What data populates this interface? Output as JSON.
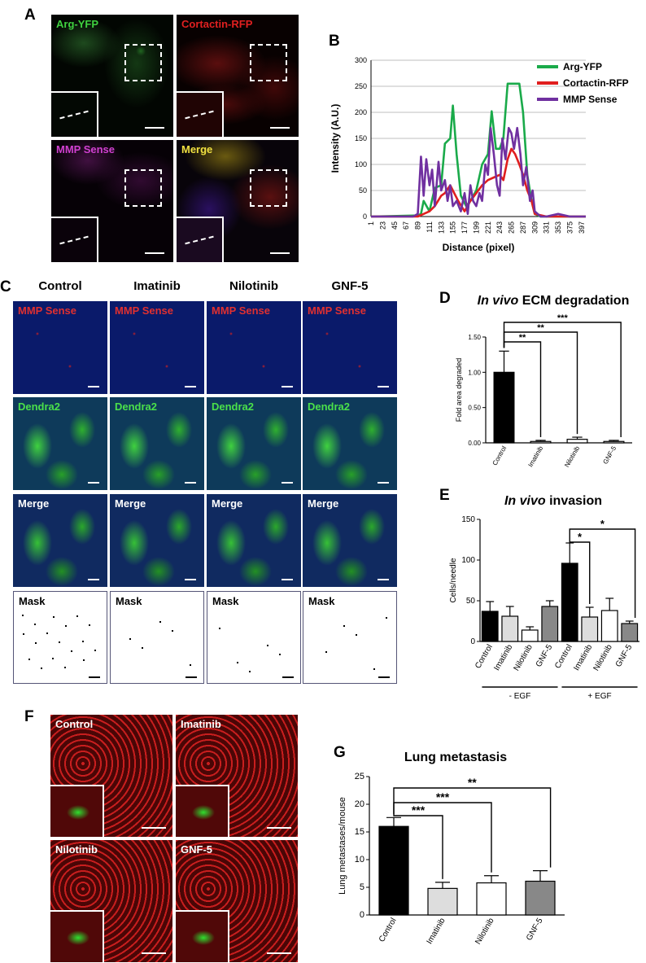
{
  "panel_labels": {
    "A": "A",
    "B": "B",
    "C": "C",
    "D": "D",
    "E": "E",
    "F": "F",
    "G": "G"
  },
  "panel_a": {
    "tiles": [
      {
        "label": "Arg-YFP",
        "color": "#3fd13f"
      },
      {
        "label": "Cortactin-RFP",
        "color": "#e02020"
      },
      {
        "label": "MMP Sense",
        "color": "#d040d0"
      },
      {
        "label": "Merge",
        "color": "#f0e040"
      }
    ]
  },
  "panel_c": {
    "columns": [
      "Control",
      "Imatinib",
      "Nilotinib",
      "GNF-5"
    ],
    "rows": [
      {
        "label": "MMP Sense",
        "color": "#e02020"
      },
      {
        "label": "Dendra2",
        "color": "#3fd13f"
      },
      {
        "label": "Merge",
        "color": "#ffffff"
      },
      {
        "label": "Mask",
        "color": "#000000"
      }
    ]
  },
  "panel_f": {
    "tiles": [
      "Control",
      "Imatinib",
      "Nilotinib",
      "GNF-5"
    ]
  },
  "chart_data": [
    {
      "id": "B",
      "type": "line",
      "ylabel": "Intensity (A.U.)",
      "xlabel": "Distance (pixel)",
      "ylim": [
        0,
        300
      ],
      "yticks": [
        "0",
        "50",
        "100",
        "150",
        "200",
        "250",
        "300"
      ],
      "xticks": [
        "1",
        "23",
        "45",
        "67",
        "89",
        "111",
        "133",
        "155",
        "177",
        "199",
        "221",
        "243",
        "265",
        "287",
        "309",
        "331",
        "353",
        "375",
        "397"
      ],
      "grid": true,
      "legend_position": "top-right",
      "series": [
        {
          "name": "Arg-YFP",
          "color": "#1aaa4a",
          "x": [
            1,
            89,
            95,
            100,
            111,
            121,
            133,
            140,
            150,
            155,
            162,
            170,
            180,
            188,
            199,
            210,
            221,
            228,
            236,
            243,
            250,
            258,
            265,
            272,
            280,
            287,
            295,
            303,
            309,
            320,
            331,
            353,
            375,
            397,
            405
          ],
          "y": [
            0,
            2,
            5,
            30,
            10,
            55,
            60,
            140,
            150,
            213,
            120,
            40,
            20,
            30,
            50,
            100,
            120,
            202,
            130,
            130,
            150,
            255,
            255,
            255,
            255,
            200,
            80,
            30,
            5,
            0,
            0,
            0,
            0,
            0,
            0
          ]
        },
        {
          "name": "Cortactin-RFP",
          "color": "#e01e1e",
          "x": [
            1,
            89,
            100,
            111,
            121,
            133,
            140,
            150,
            155,
            165,
            177,
            188,
            199,
            210,
            221,
            232,
            243,
            250,
            258,
            265,
            272,
            280,
            287,
            295,
            303,
            309,
            331,
            397,
            405
          ],
          "y": [
            0,
            0,
            5,
            10,
            20,
            40,
            45,
            60,
            50,
            30,
            10,
            30,
            45,
            60,
            70,
            75,
            80,
            70,
            110,
            130,
            120,
            100,
            80,
            50,
            30,
            5,
            0,
            0,
            0
          ]
        },
        {
          "name": "MMP Sense",
          "color": "#7030a0",
          "x": [
            1,
            80,
            89,
            95,
            100,
            105,
            111,
            116,
            121,
            128,
            133,
            140,
            145,
            150,
            155,
            162,
            170,
            177,
            183,
            188,
            193,
            199,
            205,
            210,
            216,
            221,
            226,
            232,
            238,
            243,
            248,
            254,
            260,
            265,
            270,
            276,
            282,
            287,
            293,
            300,
            305,
            309,
            320,
            331,
            353,
            375,
            397,
            405
          ],
          "y": [
            0,
            0,
            5,
            115,
            40,
            110,
            60,
            90,
            20,
            105,
            50,
            70,
            30,
            60,
            20,
            30,
            10,
            45,
            5,
            60,
            30,
            20,
            45,
            30,
            100,
            80,
            170,
            120,
            60,
            40,
            150,
            110,
            170,
            160,
            130,
            170,
            120,
            60,
            95,
            30,
            50,
            10,
            0,
            0,
            5,
            0,
            0,
            0
          ]
        }
      ]
    },
    {
      "id": "D",
      "type": "bar",
      "title_italic": "In vivo",
      "title_rest": "ECM degradation",
      "ylabel": "Fold area degraded",
      "ylim": [
        0,
        1.5
      ],
      "yticks": [
        "0.00",
        "0.50",
        "1.00",
        "1.50"
      ],
      "categories": [
        "Control",
        "Imatinib",
        "Nilotinib",
        "GNF-5"
      ],
      "values": [
        1.0,
        0.02,
        0.05,
        0.02
      ],
      "errors": [
        0.3,
        0.015,
        0.03,
        0.015
      ],
      "colors": [
        "#000000",
        "#ffffff",
        "#ffffff",
        "#ffffff"
      ],
      "significance": [
        {
          "from": 0,
          "to": 1,
          "label": "**"
        },
        {
          "from": 0,
          "to": 2,
          "label": "**"
        },
        {
          "from": 0,
          "to": 3,
          "label": "***"
        }
      ]
    },
    {
      "id": "E",
      "type": "bar",
      "title_italic": "In vivo",
      "title_rest": "invasion",
      "ylabel": "Cells/needle",
      "ylim": [
        0,
        150
      ],
      "yticks": [
        "0",
        "50",
        "100",
        "150"
      ],
      "categories": [
        "Control",
        "Imatinib",
        "Nilotinib",
        "GNF-5",
        "Control",
        "Imatinib",
        "Nilotinib",
        "GNF-5"
      ],
      "values": [
        37,
        31,
        14,
        43,
        96,
        30,
        38,
        22
      ],
      "errors": [
        12,
        12,
        4,
        7,
        25,
        12,
        15,
        3
      ],
      "colors": [
        "#000000",
        "#dddddd",
        "#ffffff",
        "#888888",
        "#000000",
        "#dddddd",
        "#ffffff",
        "#888888"
      ],
      "groups": [
        {
          "label": "- EGF",
          "from": 0,
          "to": 3
        },
        {
          "label": "+ EGF",
          "from": 4,
          "to": 7
        }
      ],
      "significance": [
        {
          "from": 4,
          "to": 5,
          "label": "*"
        },
        {
          "from": 4,
          "to": 7,
          "label": "*"
        }
      ]
    },
    {
      "id": "G",
      "type": "bar",
      "title": "Lung metastasis",
      "ylabel": "Lung metastases/mouse",
      "ylim": [
        0,
        25
      ],
      "yticks": [
        "0",
        "5",
        "10",
        "15",
        "20",
        "25"
      ],
      "categories": [
        "Control",
        "Imatinib",
        "Nilotinib",
        "GNF-5"
      ],
      "values": [
        16,
        4.8,
        5.8,
        6.1
      ],
      "errors": [
        1.6,
        1.1,
        1.3,
        1.9
      ],
      "colors": [
        "#000000",
        "#dddddd",
        "#ffffff",
        "#888888"
      ],
      "significance": [
        {
          "from": 0,
          "to": 1,
          "label": "***"
        },
        {
          "from": 0,
          "to": 2,
          "label": "***"
        },
        {
          "from": 0,
          "to": 3,
          "label": "**"
        }
      ]
    }
  ]
}
